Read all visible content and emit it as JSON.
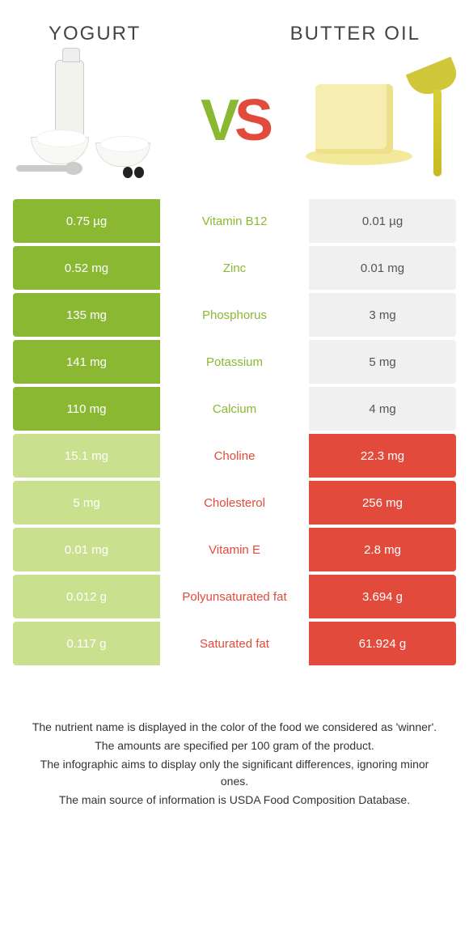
{
  "colors": {
    "left_food": "#8ab833",
    "left_food_loser": "#c9e08f",
    "right_food": "#e24a3b",
    "right_food_loser": "#f0f0f0",
    "background": "#ffffff",
    "text": "#333333"
  },
  "header": {
    "left_title": "Yogurt",
    "right_title": "Butter oil"
  },
  "vs": {
    "v": "V",
    "s": "S"
  },
  "rows": [
    {
      "nutrient": "Vitamin B12",
      "left": "0.75 µg",
      "right": "0.01 µg",
      "winner": "left"
    },
    {
      "nutrient": "Zinc",
      "left": "0.52 mg",
      "right": "0.01 mg",
      "winner": "left"
    },
    {
      "nutrient": "Phosphorus",
      "left": "135 mg",
      "right": "3 mg",
      "winner": "left"
    },
    {
      "nutrient": "Potassium",
      "left": "141 mg",
      "right": "5 mg",
      "winner": "left"
    },
    {
      "nutrient": "Calcium",
      "left": "110 mg",
      "right": "4 mg",
      "winner": "left"
    },
    {
      "nutrient": "Choline",
      "left": "15.1 mg",
      "right": "22.3 mg",
      "winner": "right"
    },
    {
      "nutrient": "Cholesterol",
      "left": "5 mg",
      "right": "256 mg",
      "winner": "right"
    },
    {
      "nutrient": "Vitamin E",
      "left": "0.01 mg",
      "right": "2.8 mg",
      "winner": "right"
    },
    {
      "nutrient": "Polyunsaturated fat",
      "left": "0.012 g",
      "right": "3.694 g",
      "winner": "right"
    },
    {
      "nutrient": "Saturated fat",
      "left": "0.117 g",
      "right": "61.924 g",
      "winner": "right"
    }
  ],
  "footnotes": [
    "The nutrient name is displayed in the color of the food we considered as 'winner'.",
    "The amounts are specified per 100 gram of the product.",
    "The infographic aims to display only the significant differences, ignoring minor ones.",
    "The main source of information is USDA Food Composition Database."
  ]
}
